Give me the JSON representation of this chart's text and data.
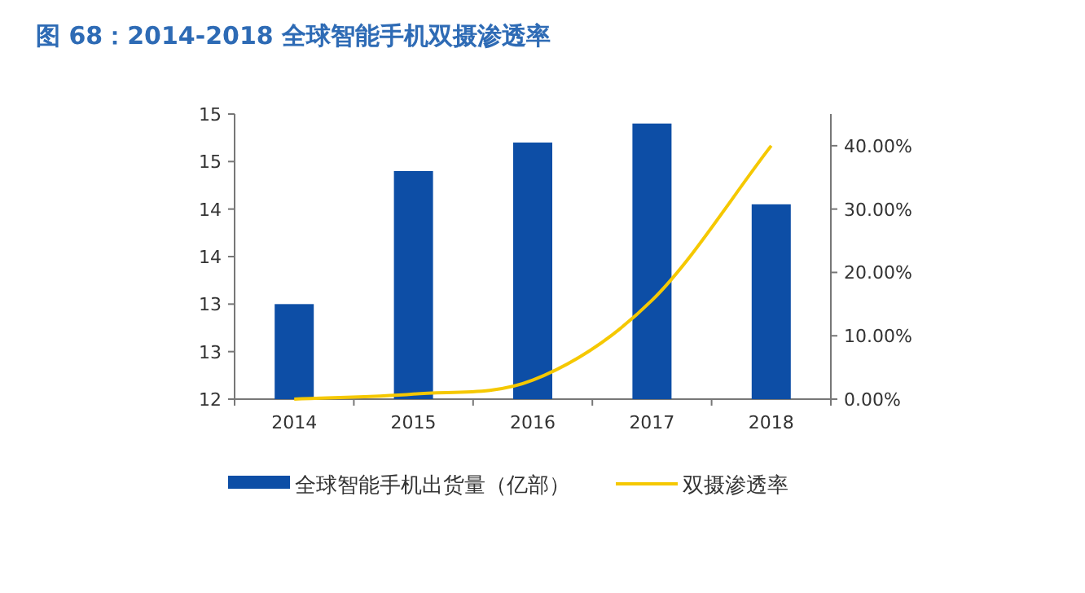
{
  "chart_data": {
    "type": "bar",
    "title": "图 68：2014-2018 全球智能手机双摄渗透率",
    "categories": [
      "2014",
      "2015",
      "2016",
      "2017",
      "2018"
    ],
    "series": [
      {
        "name": "全球智能手机出货量（亿部）",
        "color": "#0d4ea6",
        "values": [
          13.0,
          14.4,
          14.7,
          14.9,
          14.05
        ]
      },
      {
        "name": "双摄渗透率",
        "type": "line",
        "axis": "y2",
        "color": "#f5c800",
        "values": [
          0,
          0.8,
          3,
          15.6,
          40
        ]
      }
    ],
    "ylim": [
      12,
      15
    ],
    "yticks": [
      12,
      {
        "value": 12.5,
        "label": "13"
      },
      13,
      {
        "value": 13.5,
        "label": "14"
      },
      14,
      {
        "value": 14.5,
        "label": "15"
      },
      15
    ],
    "y2lim": [
      0,
      45
    ],
    "y2ticks": [
      {
        "value": 0,
        "label": "0.00%"
      },
      {
        "value": 10,
        "label": "10.00%"
      },
      {
        "value": 20,
        "label": "20.00%"
      },
      {
        "value": 30,
        "label": "30.00%"
      },
      {
        "value": 40,
        "label": "40.00%"
      }
    ],
    "legend": "bottom"
  }
}
